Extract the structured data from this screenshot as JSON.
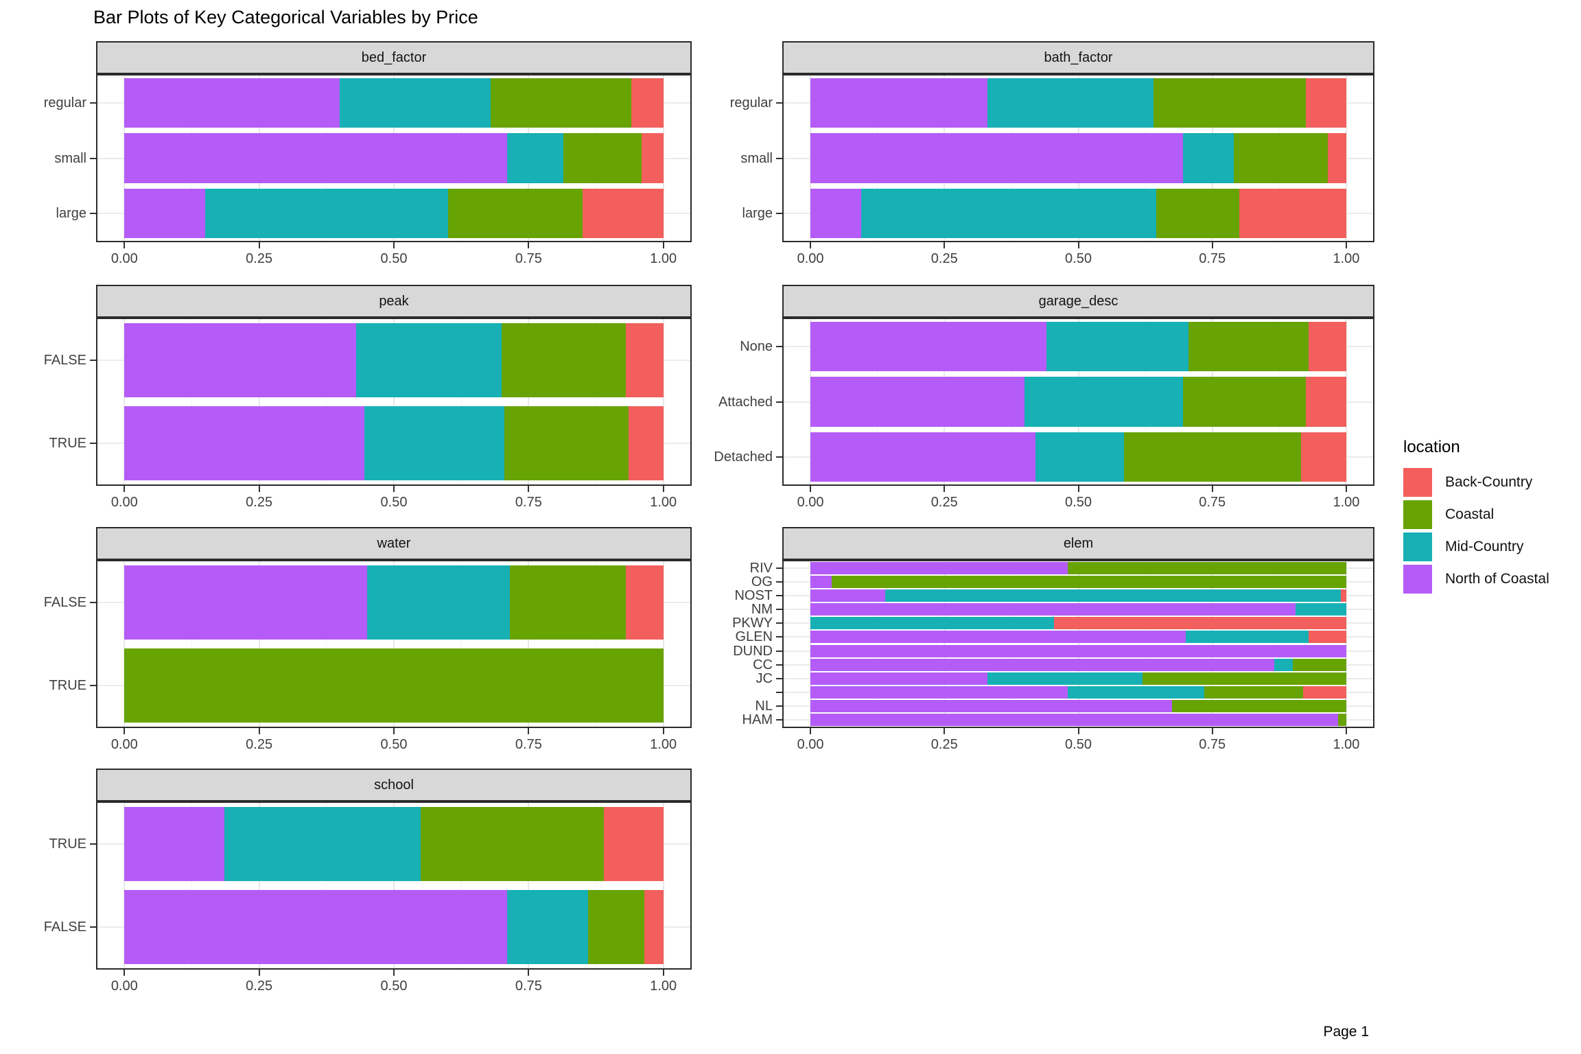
{
  "title": "Bar Plots of Key Categorical Variables by Price",
  "footer": {
    "page_label": "Page 1"
  },
  "chart_data": {
    "type": "bar",
    "orientation": "horizontal",
    "stacked": true,
    "normalized": true,
    "title": "Bar Plots of Key Categorical Variables by Price",
    "xlim": [
      0,
      1
    ],
    "x_tick_labels": [
      "0.00",
      "0.25",
      "0.50",
      "0.75",
      "1.00"
    ],
    "x_minor_gridlines": [
      0.125,
      0.375,
      0.625,
      0.875
    ],
    "grid": true,
    "legend": {
      "title": "location",
      "position": "right",
      "entries": [
        {
          "label": "Back-Country",
          "color": "#F25F5D"
        },
        {
          "label": "Coastal",
          "color": "#68A304"
        },
        {
          "label": "Mid-Country",
          "color": "#17B0B5"
        },
        {
          "label": "North of Coastal",
          "color": "#B55CF8"
        }
      ]
    },
    "stack_order": [
      "North of Coastal",
      "Mid-Country",
      "Coastal",
      "Back-Country"
    ],
    "facets": [
      {
        "facet": "bed_factor",
        "categories": [
          "regular",
          "small",
          "large"
        ],
        "rows": [
          {
            "label": "regular",
            "values": {
              "North of Coastal": 0.4,
              "Mid-Country": 0.28,
              "Coastal": 0.26,
              "Back-Country": 0.06
            }
          },
          {
            "label": "small",
            "values": {
              "North of Coastal": 0.71,
              "Mid-Country": 0.105,
              "Coastal": 0.145,
              "Back-Country": 0.04
            }
          },
          {
            "label": "large",
            "values": {
              "North of Coastal": 0.15,
              "Mid-Country": 0.45,
              "Coastal": 0.25,
              "Back-Country": 0.15
            }
          }
        ]
      },
      {
        "facet": "bath_factor",
        "categories": [
          "regular",
          "small",
          "large"
        ],
        "rows": [
          {
            "label": "regular",
            "values": {
              "North of Coastal": 0.33,
              "Mid-Country": 0.31,
              "Coastal": 0.285,
              "Back-Country": 0.075
            }
          },
          {
            "label": "small",
            "values": {
              "North of Coastal": 0.695,
              "Mid-Country": 0.095,
              "Coastal": 0.175,
              "Back-Country": 0.035
            }
          },
          {
            "label": "large",
            "values": {
              "North of Coastal": 0.095,
              "Mid-Country": 0.55,
              "Coastal": 0.155,
              "Back-Country": 0.2
            }
          }
        ]
      },
      {
        "facet": "peak",
        "categories": [
          "FALSE",
          "TRUE"
        ],
        "rows": [
          {
            "label": "FALSE",
            "values": {
              "North of Coastal": 0.43,
              "Mid-Country": 0.27,
              "Coastal": 0.23,
              "Back-Country": 0.07
            }
          },
          {
            "label": "TRUE",
            "values": {
              "North of Coastal": 0.445,
              "Mid-Country": 0.26,
              "Coastal": 0.23,
              "Back-Country": 0.065
            }
          }
        ]
      },
      {
        "facet": "garage_desc",
        "categories": [
          "None",
          "Attached",
          "Detached"
        ],
        "rows": [
          {
            "label": "None",
            "values": {
              "North of Coastal": 0.44,
              "Mid-Country": 0.265,
              "Coastal": 0.225,
              "Back-Country": 0.07
            }
          },
          {
            "label": "Attached",
            "values": {
              "North of Coastal": 0.4,
              "Mid-Country": 0.295,
              "Coastal": 0.23,
              "Back-Country": 0.075
            }
          },
          {
            "label": "Detached",
            "values": {
              "North of Coastal": 0.42,
              "Mid-Country": 0.165,
              "Coastal": 0.33,
              "Back-Country": 0.085
            }
          }
        ]
      },
      {
        "facet": "water",
        "categories": [
          "FALSE",
          "TRUE"
        ],
        "rows": [
          {
            "label": "FALSE",
            "values": {
              "North of Coastal": 0.45,
              "Mid-Country": 0.265,
              "Coastal": 0.215,
              "Back-Country": 0.07
            }
          },
          {
            "label": "TRUE",
            "values": {
              "Coastal": 1.0
            }
          }
        ]
      },
      {
        "facet": "elem",
        "categories": [
          "RIV",
          "OG",
          "NOST",
          "NM",
          "PKWY",
          "GLEN",
          "DUND",
          "CC",
          "JC",
          "",
          "NL",
          "HAM"
        ],
        "rows": [
          {
            "label": "RIV",
            "values": {
              "North of Coastal": 0.48,
              "Coastal": 0.52
            }
          },
          {
            "label": "OG",
            "values": {
              "North of Coastal": 0.04,
              "Coastal": 0.96
            }
          },
          {
            "label": "NOST",
            "values": {
              "North of Coastal": 0.14,
              "Mid-Country": 0.85,
              "Back-Country": 0.01
            }
          },
          {
            "label": "NM",
            "values": {
              "North of Coastal": 0.905,
              "Mid-Country": 0.095
            }
          },
          {
            "label": "PKWY",
            "values": {
              "Mid-Country": 0.455,
              "Back-Country": 0.545
            }
          },
          {
            "label": "GLEN",
            "values": {
              "North of Coastal": 0.7,
              "Mid-Country": 0.23,
              "Back-Country": 0.07
            }
          },
          {
            "label": "DUND",
            "values": {
              "North of Coastal": 1.0
            }
          },
          {
            "label": "CC",
            "values": {
              "North of Coastal": 0.865,
              "Mid-Country": 0.035,
              "Coastal": 0.1
            }
          },
          {
            "label": "JC",
            "values": {
              "North of Coastal": 0.33,
              "Mid-Country": 0.29,
              "Coastal": 0.38
            }
          },
          {
            "label": "",
            "values": {
              "North of Coastal": 0.48,
              "Mid-Country": 0.255,
              "Coastal": 0.185,
              "Back-Country": 0.08
            }
          },
          {
            "label": "NL",
            "values": {
              "North of Coastal": 0.675,
              "Coastal": 0.325
            }
          },
          {
            "label": "HAM",
            "values": {
              "North of Coastal": 0.985,
              "Coastal": 0.015
            }
          }
        ]
      },
      {
        "facet": "school",
        "categories": [
          "TRUE",
          "FALSE"
        ],
        "rows": [
          {
            "label": "TRUE",
            "values": {
              "North of Coastal": 0.185,
              "Mid-Country": 0.365,
              "Coastal": 0.34,
              "Back-Country": 0.11
            }
          },
          {
            "label": "FALSE",
            "values": {
              "North of Coastal": 0.71,
              "Mid-Country": 0.15,
              "Coastal": 0.105,
              "Back-Country": 0.035
            }
          }
        ]
      }
    ]
  }
}
